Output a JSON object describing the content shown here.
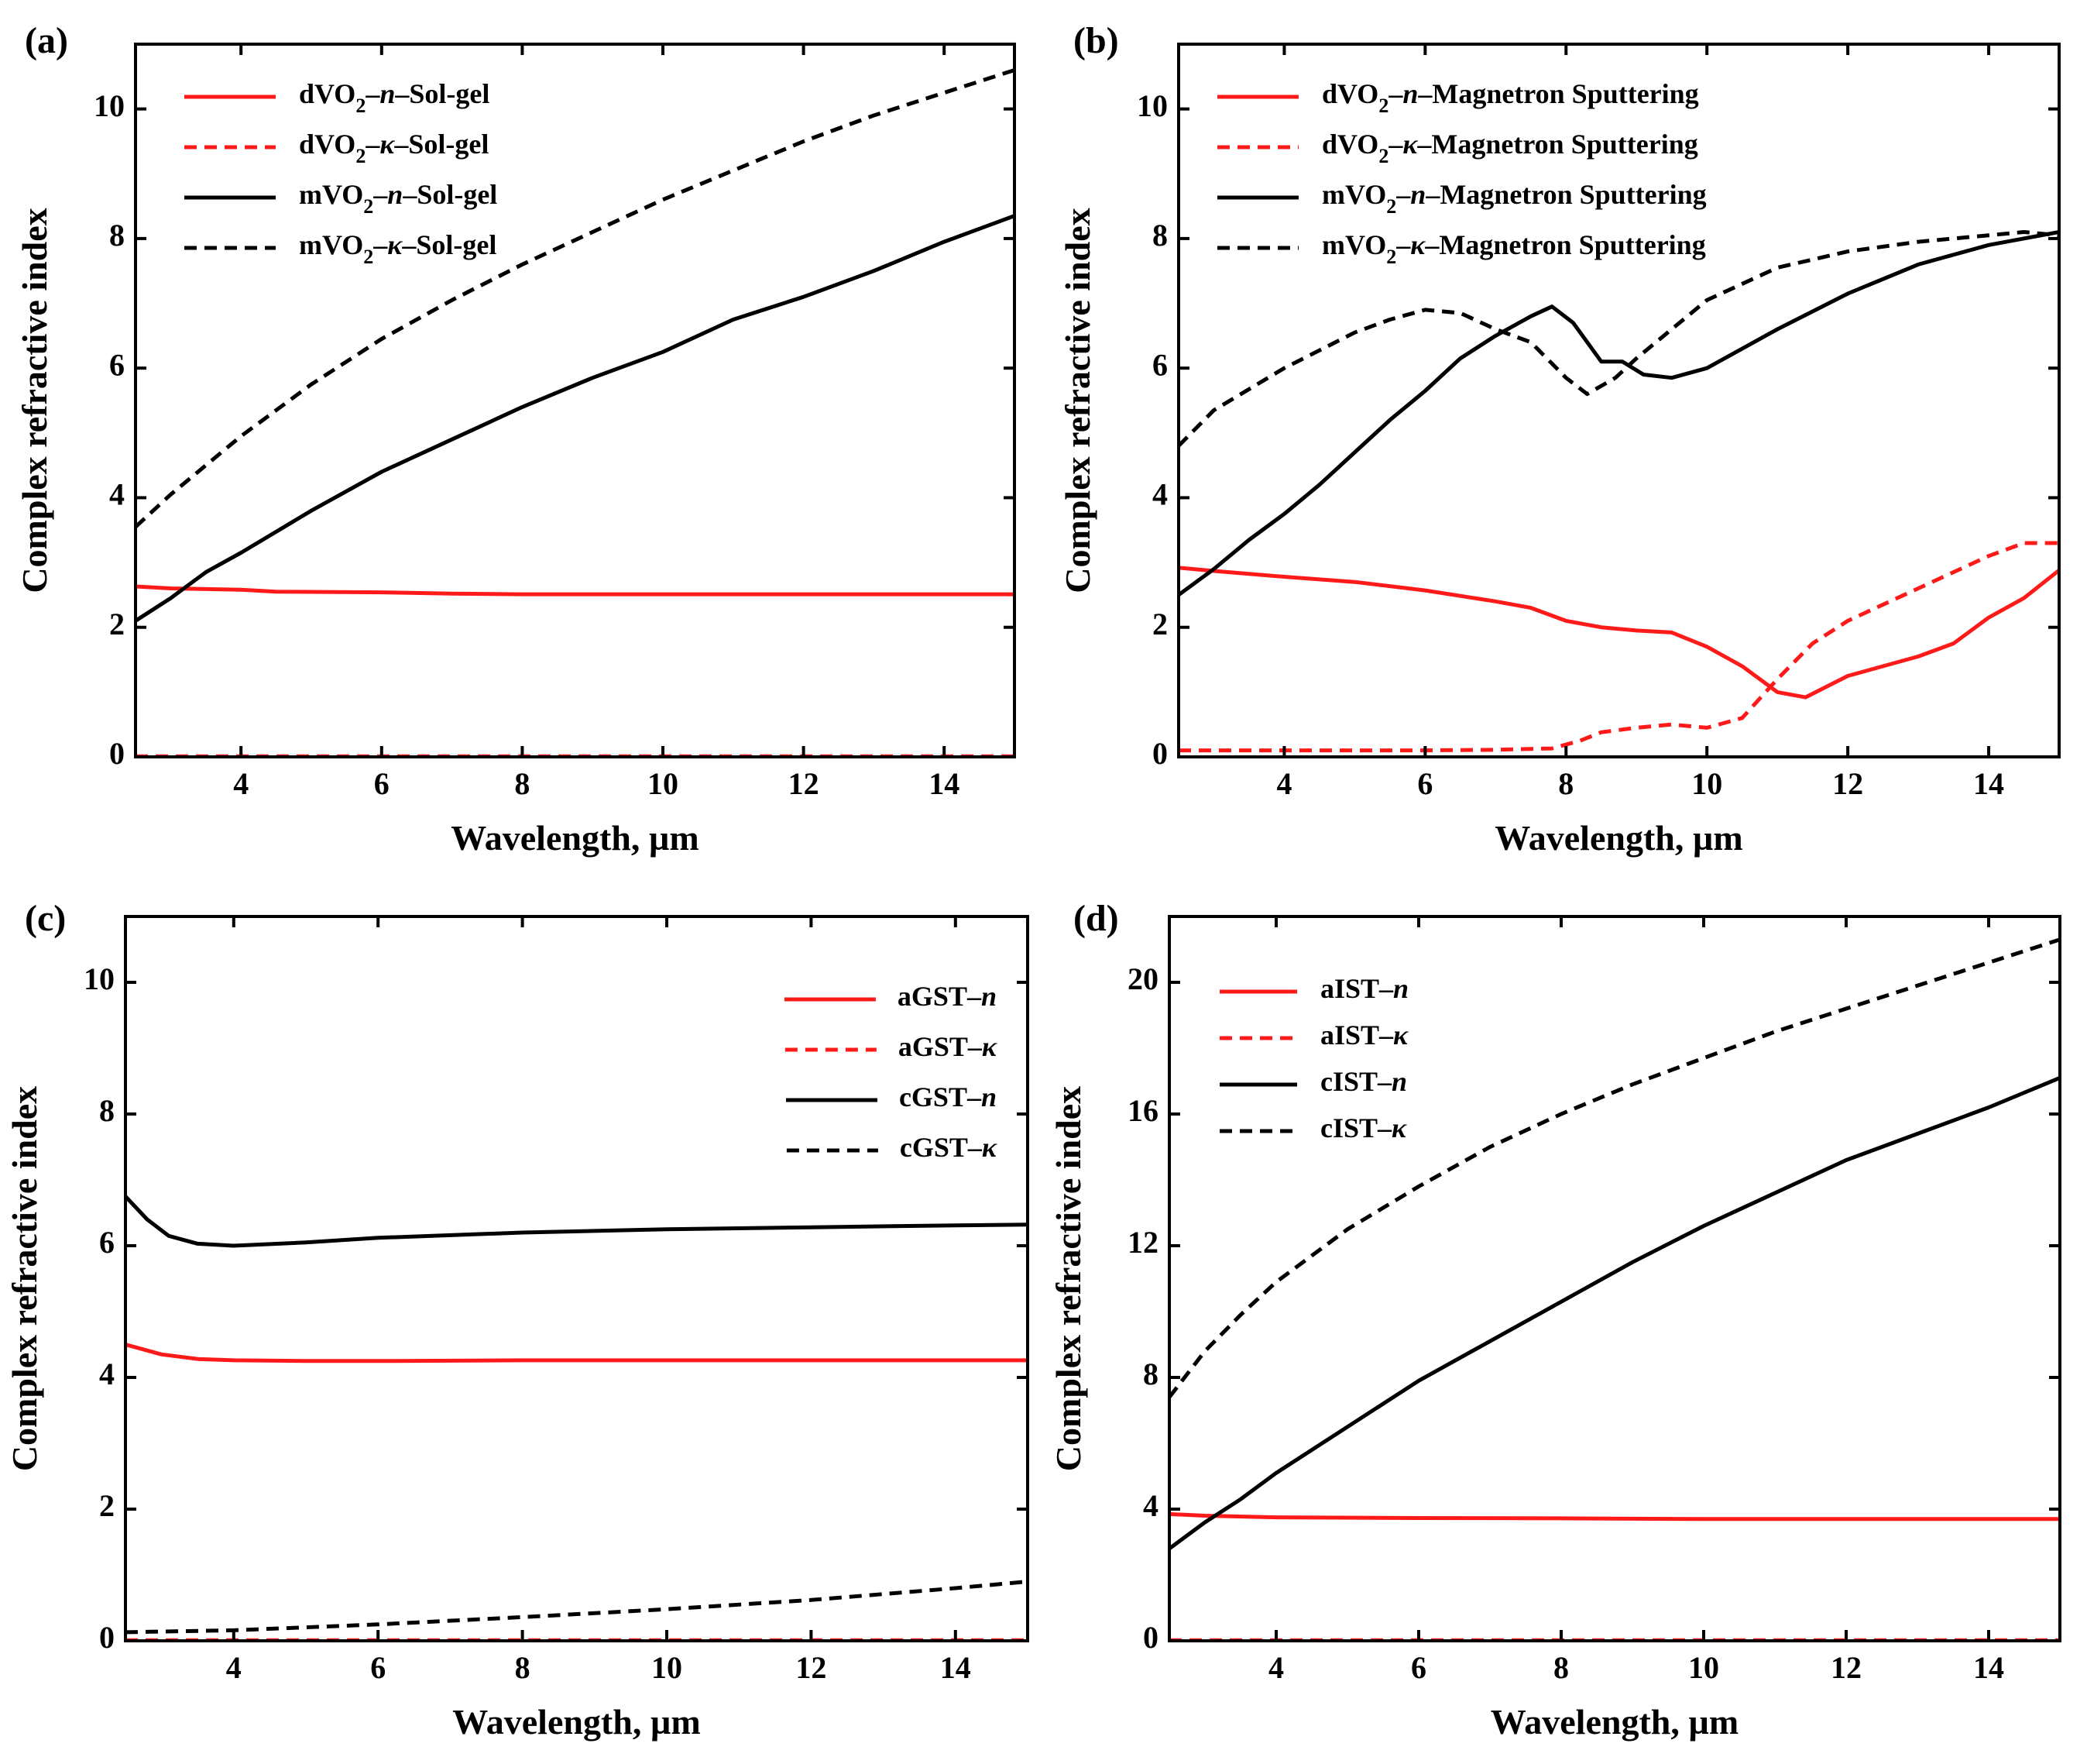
{
  "colors": {
    "red": "#ff1a1a",
    "black": "#000000"
  },
  "chart_data": [
    {
      "type": "line",
      "panel_label": "(a)",
      "xlabel": "Wavelength, µm",
      "ylabel": "Complex refractive index",
      "xlim": [
        2.5,
        15
      ],
      "ylim": [
        0,
        11
      ],
      "xticks": [
        4,
        6,
        8,
        10,
        12,
        14
      ],
      "yticks": [
        0,
        2,
        4,
        6,
        8,
        10
      ],
      "legend_position": "upper-left",
      "series": [
        {
          "name": "dVO₂–n–Sol-gel",
          "legend": {
            "pre": "dVO",
            "sub": "2",
            "sep": "–",
            "sym": "n",
            "post": "–Sol-gel"
          },
          "color": "red",
          "dashed": false,
          "x": [
            2.5,
            3,
            4,
            4.5,
            6,
            7,
            8,
            10,
            12,
            14,
            15
          ],
          "y": [
            2.63,
            2.6,
            2.58,
            2.55,
            2.54,
            2.52,
            2.51,
            2.51,
            2.51,
            2.51,
            2.51
          ]
        },
        {
          "name": "dVO₂–κ–Sol-gel",
          "legend": {
            "pre": "dVO",
            "sub": "2",
            "sep": "–",
            "sym": "κ",
            "post": "–Sol-gel"
          },
          "color": "red",
          "dashed": true,
          "x": [
            2.5,
            15
          ],
          "y": [
            0.01,
            0.01
          ]
        },
        {
          "name": "mVO₂–n–Sol-gel",
          "legend": {
            "pre": "mVO",
            "sub": "2",
            "sep": "–",
            "sym": "n",
            "post": "–Sol-gel"
          },
          "color": "black",
          "dashed": false,
          "x": [
            2.5,
            3,
            3.5,
            4,
            5,
            6,
            7,
            8,
            9,
            10,
            11,
            12,
            13,
            14,
            15
          ],
          "y": [
            2.1,
            2.45,
            2.85,
            3.15,
            3.8,
            4.4,
            4.9,
            5.4,
            5.85,
            6.25,
            6.75,
            7.1,
            7.5,
            7.95,
            8.35
          ]
        },
        {
          "name": "mVO₂–κ–Sol-gel",
          "legend": {
            "pre": "mVO",
            "sub": "2",
            "sep": "–",
            "sym": "κ",
            "post": "–Sol-gel"
          },
          "color": "black",
          "dashed": true,
          "x": [
            2.5,
            3,
            4,
            5,
            6,
            7,
            8,
            9,
            10,
            11,
            12,
            13,
            14,
            15
          ],
          "y": [
            3.55,
            4.05,
            4.95,
            5.75,
            6.45,
            7.05,
            7.6,
            8.1,
            8.6,
            9.05,
            9.5,
            9.9,
            10.25,
            10.6
          ]
        }
      ]
    },
    {
      "type": "line",
      "panel_label": "(b)",
      "xlabel": "Wavelength, µm",
      "ylabel": "Complex refractive index",
      "xlim": [
        2.5,
        15
      ],
      "ylim": [
        0,
        11
      ],
      "xticks": [
        4,
        6,
        8,
        10,
        12,
        14
      ],
      "yticks": [
        0,
        2,
        4,
        6,
        8,
        10
      ],
      "legend_position": "upper-left",
      "series": [
        {
          "name": "dVO₂–n–Magnetron Sputtering",
          "legend": {
            "pre": "dVO",
            "sub": "2",
            "sep": "–",
            "sym": "n",
            "post": "–Magnetron Sputtering"
          },
          "color": "red",
          "dashed": false,
          "x": [
            2.5,
            3,
            4,
            5,
            6,
            7,
            7.5,
            8,
            8.5,
            9,
            9.5,
            10,
            10.5,
            11,
            11.4,
            12,
            13,
            13.5,
            14,
            14.5,
            15
          ],
          "y": [
            2.92,
            2.87,
            2.78,
            2.7,
            2.57,
            2.4,
            2.3,
            2.1,
            2.0,
            1.95,
            1.92,
            1.7,
            1.4,
            1.0,
            0.92,
            1.25,
            1.55,
            1.75,
            2.15,
            2.45,
            2.88
          ]
        },
        {
          "name": "dVO₂–κ–Magnetron Sputtering",
          "legend": {
            "pre": "dVO",
            "sub": "2",
            "sep": "–",
            "sym": "κ",
            "post": "–Magnetron Sputtering"
          },
          "color": "red",
          "dashed": true,
          "x": [
            2.5,
            4,
            5,
            6,
            7,
            7.8,
            8.2,
            8.5,
            9,
            9.5,
            10,
            10.5,
            11,
            11.5,
            12,
            13,
            14,
            14.5,
            15
          ],
          "y": [
            0.1,
            0.1,
            0.1,
            0.1,
            0.11,
            0.13,
            0.25,
            0.38,
            0.45,
            0.5,
            0.45,
            0.6,
            1.2,
            1.75,
            2.1,
            2.6,
            3.1,
            3.3,
            3.3
          ]
        },
        {
          "name": "mVO₂–n–Magnetron Sputtering",
          "legend": {
            "pre": "mVO",
            "sub": "2",
            "sep": "–",
            "sym": "n",
            "post": "–Magnetron Sputtering"
          },
          "color": "black",
          "dashed": false,
          "x": [
            2.5,
            3,
            3.5,
            4,
            4.5,
            5,
            5.5,
            6,
            6.5,
            7,
            7.5,
            7.8,
            8.1,
            8.5,
            8.8,
            9.1,
            9.5,
            10,
            11,
            12,
            13,
            14,
            15
          ],
          "y": [
            2.5,
            2.9,
            3.35,
            3.75,
            4.2,
            4.7,
            5.2,
            5.65,
            6.15,
            6.5,
            6.8,
            6.95,
            6.7,
            6.1,
            6.1,
            5.9,
            5.85,
            6.0,
            6.6,
            7.15,
            7.6,
            7.9,
            8.1
          ]
        },
        {
          "name": "mVO₂–κ–Magnetron Sputtering",
          "legend": {
            "pre": "mVO",
            "sub": "2",
            "sep": "–",
            "sym": "κ",
            "post": "–Magnetron Sputtering"
          },
          "color": "black",
          "dashed": true,
          "x": [
            2.5,
            3,
            4,
            5,
            5.5,
            6,
            6.5,
            7,
            7.5,
            8,
            8.3,
            8.7,
            9,
            9.5,
            10,
            11,
            12,
            13,
            14,
            14.5,
            15
          ],
          "y": [
            4.8,
            5.35,
            6.0,
            6.55,
            6.75,
            6.9,
            6.85,
            6.6,
            6.4,
            5.85,
            5.6,
            5.85,
            6.15,
            6.6,
            7.05,
            7.55,
            7.8,
            7.95,
            8.05,
            8.1,
            8.05
          ]
        }
      ]
    },
    {
      "type": "line",
      "panel_label": "(c)",
      "xlabel": "Wavelength, µm",
      "ylabel": "Complex refractive index",
      "xlim": [
        2.5,
        15
      ],
      "ylim": [
        0,
        11
      ],
      "xticks": [
        4,
        6,
        8,
        10,
        12,
        14
      ],
      "yticks": [
        0,
        2,
        4,
        6,
        8,
        10
      ],
      "legend_position": "upper-right",
      "series": [
        {
          "name": "aGST–n",
          "legend": {
            "pre": "aGST",
            "sub": "",
            "sep": "–",
            "sym": "n",
            "post": ""
          },
          "color": "red",
          "dashed": false,
          "x": [
            2.5,
            3,
            3.5,
            4,
            5,
            6,
            8,
            10,
            12,
            14,
            15
          ],
          "y": [
            4.5,
            4.35,
            4.28,
            4.26,
            4.25,
            4.25,
            4.26,
            4.26,
            4.26,
            4.26,
            4.26
          ]
        },
        {
          "name": "aGST–κ",
          "legend": {
            "pre": "aGST",
            "sub": "",
            "sep": "–",
            "sym": "κ",
            "post": ""
          },
          "color": "red",
          "dashed": true,
          "x": [
            2.5,
            15
          ],
          "y": [
            0.01,
            0.01
          ]
        },
        {
          "name": "cGST–n",
          "legend": {
            "pre": "cGST",
            "sub": "",
            "sep": "–",
            "sym": "n",
            "post": ""
          },
          "color": "black",
          "dashed": false,
          "x": [
            2.5,
            2.8,
            3.1,
            3.5,
            4,
            5,
            6,
            8,
            10,
            12,
            14,
            15
          ],
          "y": [
            6.75,
            6.4,
            6.15,
            6.03,
            6.0,
            6.05,
            6.12,
            6.2,
            6.25,
            6.28,
            6.31,
            6.32
          ]
        },
        {
          "name": "cGST–κ",
          "legend": {
            "pre": "cGST",
            "sub": "",
            "sep": "–",
            "sym": "κ",
            "post": ""
          },
          "color": "black",
          "dashed": true,
          "x": [
            2.5,
            4,
            6,
            8,
            10,
            12,
            14,
            15
          ],
          "y": [
            0.13,
            0.16,
            0.25,
            0.36,
            0.48,
            0.62,
            0.8,
            0.9
          ]
        }
      ]
    },
    {
      "type": "line",
      "panel_label": "(d)",
      "xlabel": "Wavelength, µm",
      "ylabel": "Complex refractive index",
      "xlim": [
        2.5,
        15
      ],
      "ylim": [
        0,
        22
      ],
      "xticks": [
        4,
        6,
        8,
        10,
        12,
        14
      ],
      "yticks": [
        0,
        4,
        8,
        12,
        16,
        20
      ],
      "legend_position": "upper-left",
      "series": [
        {
          "name": "aIST–n",
          "legend": {
            "pre": "aIST",
            "sub": "",
            "sep": "–",
            "sym": "n",
            "post": ""
          },
          "color": "red",
          "dashed": false,
          "x": [
            2.5,
            3,
            4,
            6,
            8,
            10,
            12,
            14,
            15
          ],
          "y": [
            3.85,
            3.8,
            3.75,
            3.73,
            3.72,
            3.7,
            3.7,
            3.7,
            3.7
          ]
        },
        {
          "name": "aIST–κ",
          "legend": {
            "pre": "aIST",
            "sub": "",
            "sep": "–",
            "sym": "κ",
            "post": ""
          },
          "color": "red",
          "dashed": true,
          "x": [
            2.5,
            15
          ],
          "y": [
            0.02,
            0.02
          ]
        },
        {
          "name": "cIST–n",
          "legend": {
            "pre": "cIST",
            "sub": "",
            "sep": "–",
            "sym": "n",
            "post": ""
          },
          "color": "black",
          "dashed": false,
          "x": [
            2.5,
            3,
            3.5,
            4,
            5,
            6,
            7,
            8,
            9,
            10,
            11,
            12,
            13,
            14,
            15
          ],
          "y": [
            2.8,
            3.6,
            4.3,
            5.1,
            6.5,
            7.9,
            9.1,
            10.3,
            11.5,
            12.6,
            13.6,
            14.6,
            15.4,
            16.2,
            17.1
          ]
        },
        {
          "name": "cIST–κ",
          "legend": {
            "pre": "cIST",
            "sub": "",
            "sep": "–",
            "sym": "κ",
            "post": ""
          },
          "color": "black",
          "dashed": true,
          "x": [
            2.5,
            3,
            3.5,
            4,
            5,
            6,
            7,
            8,
            9,
            10,
            11,
            12,
            13,
            14,
            15
          ],
          "y": [
            7.4,
            8.8,
            9.9,
            10.9,
            12.5,
            13.8,
            15.0,
            16.0,
            16.9,
            17.7,
            18.5,
            19.2,
            19.9,
            20.6,
            21.3
          ]
        }
      ]
    }
  ]
}
